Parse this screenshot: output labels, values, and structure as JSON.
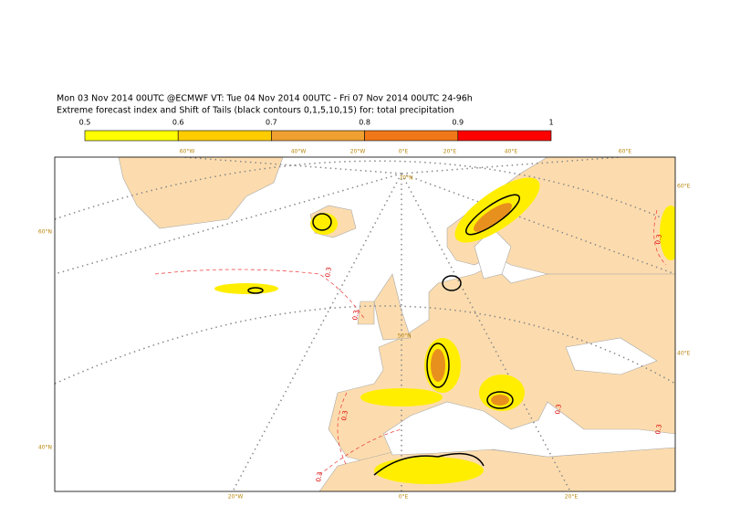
{
  "header": {
    "line1": "Mon 03 Nov 2014 00UTC @ECMWF VT: Tue 04 Nov 2014 00UTC - Fri 07 Nov 2014 00UTC  24-96h",
    "line2": "Extreme forecast index and Shift of Tails (black contours 0,1,5,10,15) for: total precipitation"
  },
  "colorbar": {
    "ticks": [
      "0.5",
      "0.6",
      "0.7",
      "0.8",
      "0.9",
      "1"
    ],
    "colors": [
      "#ffff00",
      "#ffcc00",
      "#f0a030",
      "#f07818",
      "#ff0000"
    ]
  },
  "map": {
    "top_labels": [
      "60°W",
      "40°W",
      "20°W",
      "0°E",
      "20°E",
      "40°E",
      "60°E"
    ],
    "bottom_labels": [
      "20°W",
      "0°E",
      "20°E"
    ],
    "left_labels": [
      "60°N",
      "40°N"
    ],
    "right_labels": [
      "60°E",
      "40°E"
    ],
    "inner_labels": [
      "70°N",
      "50°N"
    ],
    "contour_labels": [
      "0.3",
      "0.3",
      "0.3",
      "0.3",
      "0.3",
      "0.3",
      "0.3"
    ]
  }
}
